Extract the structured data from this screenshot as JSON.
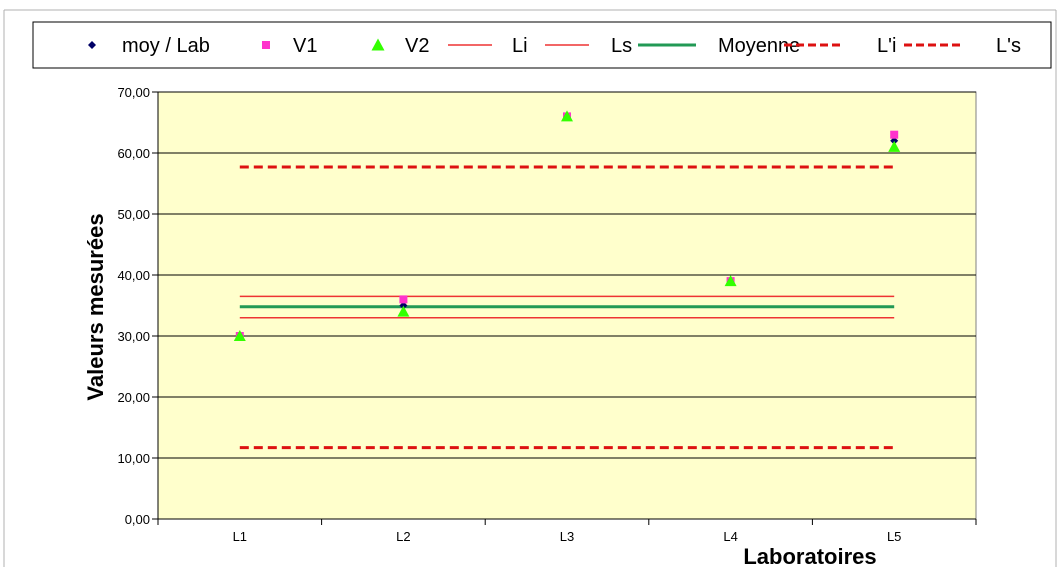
{
  "chart_data": {
    "type": "scatter",
    "title": "",
    "xlabel": "Laboratoires",
    "ylabel": "Valeurs mesurées",
    "ylim": [
      0,
      70
    ],
    "grid": "horizontal",
    "legend": "top",
    "categories": [
      "L1",
      "L2",
      "L3",
      "L4",
      "L5"
    ],
    "y_ticks": [
      "0,00",
      "10,00",
      "20,00",
      "30,00",
      "40,00",
      "50,00",
      "60,00",
      "70,00"
    ],
    "y_tick_values": [
      0,
      10,
      20,
      30,
      40,
      50,
      60,
      70
    ],
    "series": [
      {
        "name": "moy / Lab",
        "kind": "marker",
        "marker": "diamond",
        "color": "#000066",
        "values": [
          30,
          35,
          66,
          39,
          62
        ]
      },
      {
        "name": "V1",
        "kind": "marker",
        "marker": "square",
        "color": "#ff33cc",
        "values": [
          30,
          36,
          66,
          39,
          63
        ]
      },
      {
        "name": "V2",
        "kind": "marker",
        "marker": "triangle",
        "color": "#33ff00",
        "values": [
          30,
          34,
          66,
          39,
          61
        ]
      },
      {
        "name": "Li",
        "kind": "line",
        "style": "solid",
        "color": "#ee3333",
        "value": 33
      },
      {
        "name": "Ls",
        "kind": "line",
        "style": "solid",
        "color": "#ee3333",
        "value": 36.5
      },
      {
        "name": "Moyenne",
        "kind": "line",
        "style": "solid-thick",
        "color": "#229955",
        "value": 34.8
      },
      {
        "name": "L'i",
        "kind": "line",
        "style": "dashed",
        "color": "#dd1111",
        "value": 11.7
      },
      {
        "name": "L's",
        "kind": "line",
        "style": "dashed",
        "color": "#dd1111",
        "value": 57.7
      }
    ],
    "colors": {
      "plot_background": "#ffffcc",
      "grid": "#000000",
      "frame": "#808080"
    }
  }
}
